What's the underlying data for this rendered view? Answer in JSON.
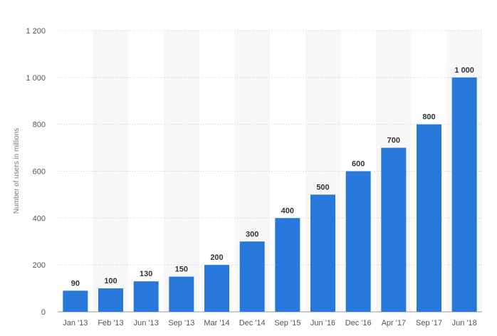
{
  "chart_data": {
    "type": "bar",
    "title": "",
    "xlabel": "",
    "ylabel": "Number of users in millions",
    "categories": [
      "Jan '13",
      "Feb '13",
      "Jun '13",
      "Sep '13",
      "Mar '14",
      "Dec '14",
      "Sep '15",
      "Jun '16",
      "Dec '16",
      "Apr '17",
      "Sep '17",
      "Jun '18"
    ],
    "values": [
      90,
      100,
      130,
      150,
      200,
      300,
      400,
      500,
      600,
      700,
      800,
      1000
    ],
    "value_labels": [
      "90",
      "100",
      "130",
      "150",
      "200",
      "300",
      "400",
      "500",
      "600",
      "700",
      "800",
      "1 000"
    ],
    "ylim": [
      0,
      1200
    ],
    "yticks": [
      0,
      200,
      400,
      600,
      800,
      1000,
      1200
    ],
    "ytick_labels": [
      "0",
      "200",
      "400",
      "600",
      "800",
      "1 000",
      "1 200"
    ],
    "grid": true,
    "legend": "none",
    "bar_color": "#2878dc",
    "band_color": "#f7f7f7",
    "grid_color": "#cccccc"
  }
}
